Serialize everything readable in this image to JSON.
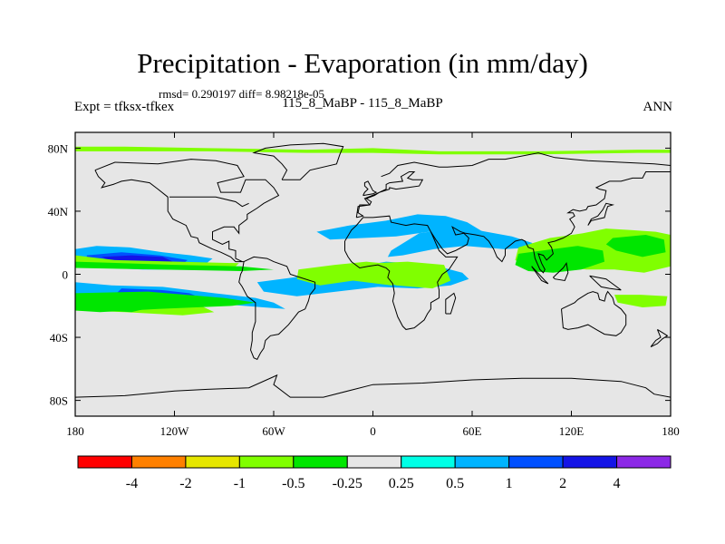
{
  "chart_data": {
    "type": "heatmap",
    "title": "Precipitation - Evaporation (in mm/day)",
    "subtitle": "rmsd= 0.290197 diff= 8.98218e-05",
    "left_string": "Expt = tfksx-tfkex",
    "center_string": "115_8_MaBP - 115_8_MaBP",
    "right_string": "ANN",
    "xlim": [
      -180,
      180
    ],
    "ylim": [
      -90,
      90
    ],
    "x_ticks": [
      {
        "value": -180,
        "label": "180"
      },
      {
        "value": -120,
        "label": "120W"
      },
      {
        "value": -60,
        "label": "60W"
      },
      {
        "value": 0,
        "label": "0"
      },
      {
        "value": 60,
        "label": "60E"
      },
      {
        "value": 120,
        "label": "120E"
      },
      {
        "value": 180,
        "label": "180"
      }
    ],
    "y_ticks": [
      {
        "value": 80,
        "label": "80N"
      },
      {
        "value": 40,
        "label": "40N"
      },
      {
        "value": 0,
        "label": "0"
      },
      {
        "value": -40,
        "label": "40S"
      },
      {
        "value": -80,
        "label": "80S"
      }
    ],
    "colorbar": {
      "colors": [
        "#ff0000",
        "#ff8000",
        "#e6e600",
        "#80ff00",
        "#00e600",
        "#e6e6e6",
        "#00ffe6",
        "#00b4ff",
        "#0050ff",
        "#1414e6",
        "#8c28e6"
      ],
      "labels": [
        "-4",
        "-2",
        "-1",
        "-0.5",
        "-0.25",
        "0.25",
        "0.5",
        "1",
        "2",
        "4"
      ]
    },
    "background_color": "#e6e6e6",
    "regions": [
      {
        "level": "0.5",
        "lon": [
          -180,
          -167,
          -147,
          -127,
          -110,
          -97,
          -103,
          -117,
          -139,
          -160,
          -180
        ],
        "lat": [
          16,
          18,
          17,
          14,
          12,
          10,
          5,
          3,
          3,
          4,
          5
        ]
      },
      {
        "level": "1",
        "lon": [
          -173,
          -152,
          -129,
          -112,
          -116,
          -137,
          -159,
          -173
        ],
        "lat": [
          12,
          14,
          12,
          9,
          6,
          5,
          6,
          9
        ]
      },
      {
        "level": "2",
        "lon": [
          -164,
          -146,
          -127,
          -121,
          -137,
          -158
        ],
        "lat": [
          11,
          12,
          11,
          8,
          7,
          8
        ]
      },
      {
        "level": "0.5",
        "lon": [
          -180,
          -158,
          -127,
          -96,
          -71,
          -60,
          -53,
          -66,
          -91,
          -125,
          -153,
          -180
        ],
        "lat": [
          -5,
          -7,
          -8,
          -12,
          -15,
          -18,
          -22,
          -21,
          -19,
          -17,
          -16,
          -14
        ]
      },
      {
        "level": "1",
        "lon": [
          -152,
          -128,
          -111,
          -104,
          -118,
          -138,
          -155
        ],
        "lat": [
          -9,
          -10,
          -12,
          -15,
          -16,
          -15,
          -12
        ]
      },
      {
        "level": "-0.5",
        "lon": [
          -180,
          -158,
          -131,
          -106,
          -96,
          -115,
          -150,
          -180
        ],
        "lat": [
          -17,
          -16,
          -16,
          -19,
          -24,
          -26,
          -24,
          -23
        ]
      },
      {
        "level": "-0.25",
        "lon": [
          -180,
          -136,
          -90,
          -71,
          -85,
          -130,
          -165,
          -180
        ],
        "lat": [
          -12,
          -11,
          -15,
          -18,
          -20,
          -22,
          -24,
          -23
        ]
      },
      {
        "level": "-0.5",
        "lon": [
          -180,
          -156,
          -118,
          -81,
          -83,
          -117,
          -161,
          -180
        ],
        "lat": [
          12,
          9,
          8,
          7,
          5,
          5,
          5,
          5
        ]
      },
      {
        "level": "-0.25",
        "lon": [
          -180,
          -120,
          -80,
          -60,
          -80,
          -130,
          -180
        ],
        "lat": [
          8,
          6,
          5,
          3,
          2,
          3,
          4
        ]
      },
      {
        "level": "0.5",
        "lon": [
          -70,
          -48,
          -20,
          8,
          36,
          54,
          58,
          47,
          27,
          3,
          -22,
          -46,
          -66
        ],
        "lat": [
          -5,
          -2,
          3,
          8,
          6,
          1,
          -3,
          -7,
          -9,
          -8,
          -11,
          -14,
          -11
        ]
      },
      {
        "level": "-0.5",
        "lon": [
          -45,
          -23,
          -4,
          16,
          24,
          11,
          -12,
          -32,
          -46
        ],
        "lat": [
          3,
          6,
          8,
          6,
          -4,
          -7,
          -4,
          -7,
          -3
        ]
      },
      {
        "level": "-0.5",
        "lon": [
          1,
          21,
          43,
          47,
          36,
          14,
          2
        ],
        "lat": [
          7,
          8,
          6,
          -4,
          -9,
          -7,
          -2
        ]
      },
      {
        "level": "0.5",
        "lon": [
          11,
          28,
          48,
          63,
          84,
          96,
          99,
          79,
          56,
          37,
          18,
          9
        ],
        "lat": [
          15,
          26,
          29,
          28,
          24,
          20,
          17,
          16,
          18,
          16,
          12,
          11
        ]
      },
      {
        "level": "0.5",
        "lon": [
          -34,
          -14,
          8,
          27,
          44,
          57,
          68,
          55,
          34,
          14,
          -6,
          -26
        ],
        "lat": [
          27,
          31,
          34,
          38,
          37,
          33,
          26,
          24,
          27,
          24,
          23,
          22
        ]
      },
      {
        "level": "-0.5",
        "lon": [
          88,
          107,
          127,
          141,
          156,
          171,
          180,
          180,
          164,
          146,
          129,
          111,
          94,
          86
        ],
        "lat": [
          17,
          23,
          26,
          29,
          28,
          27,
          25,
          5,
          1,
          3,
          3,
          5,
          4,
          9
        ]
      },
      {
        "level": "-0.25",
        "lon": [
          88,
          109,
          124,
          139,
          140,
          126,
          109,
          94,
          86
        ],
        "lat": [
          13,
          16,
          18,
          15,
          8,
          3,
          1,
          2,
          6
        ]
      },
      {
        "level": "-0.25",
        "lon": [
          145,
          165,
          176,
          177,
          163,
          147,
          141
        ],
        "lat": [
          23,
          25,
          22,
          14,
          11,
          15,
          19
        ]
      },
      {
        "level": "-0.25",
        "lon": [
          -175,
          -160,
          -145,
          -138,
          -146,
          -164,
          -176
        ],
        "lat": [
          -16,
          -16,
          -17,
          -22,
          -24,
          -23,
          -20
        ]
      },
      {
        "level": "-0.5",
        "lon": [
          146,
          162,
          178,
          177,
          163,
          148
        ],
        "lat": [
          -13,
          -13,
          -14,
          -20,
          -21,
          -18
        ]
      },
      {
        "level": "-0.5",
        "lon": [
          -180,
          -150,
          -100,
          -40,
          0,
          40,
          100,
          160,
          180,
          180,
          160,
          100,
          40,
          0,
          -40,
          -100,
          -150,
          -180
        ],
        "lat": [
          81,
          81,
          80,
          79,
          80,
          78,
          78,
          79,
          79,
          77,
          77,
          76,
          76,
          77,
          77,
          78,
          78,
          78
        ]
      }
    ]
  }
}
